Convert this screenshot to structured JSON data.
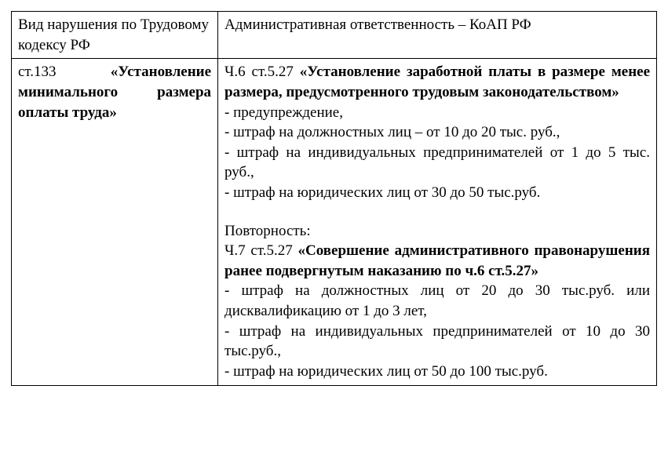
{
  "table": {
    "header": {
      "col1": "Вид нарушения по Трудовому кодексу РФ",
      "col2": "Административная ответственность – КоАП РФ"
    },
    "row": {
      "left": {
        "prefix": "ст.133",
        "bold": "«Установление минимального размера оплаты труда»"
      },
      "right": {
        "sec1_prefix": "Ч.6 ст.5.27",
        "sec1_bold": "«Установление заработной платы в размере менее размера, предусмотренного трудовым законодательством»",
        "sec1_items": [
          "- предупреждение,",
          "- штраф на должностных лиц – от 10 до 20 тыс. руб.,",
          "- штраф на индивидуальных предпринимателей от 1 до 5 тыс. руб.,",
          "- штраф на юридических лиц от 30 до 50 тыс.руб."
        ],
        "repeat_label": "Повторность:",
        "sec2_prefix": "Ч.7 ст.5.27",
        "sec2_bold": "«Совершение административного правонарушения ранее подвергнутым наказанию по ч.6 ст.5.27»",
        "sec2_items": [
          "- штраф на должностных лиц от 20 до 30 тыс.руб. или дисквалификацию от 1 до 3 лет,",
          "- штраф на индивидуальных предпринимателей от 10 до 30 тыс.руб.,",
          "- штраф на юридических лиц от 50 до 100 тыс.руб."
        ]
      }
    }
  },
  "style": {
    "font_family": "Times New Roman",
    "font_size_pt": 14,
    "text_color": "#000000",
    "background_color": "#ffffff",
    "border_color": "#000000",
    "col1_width_pct": 32,
    "col2_width_pct": 68
  }
}
